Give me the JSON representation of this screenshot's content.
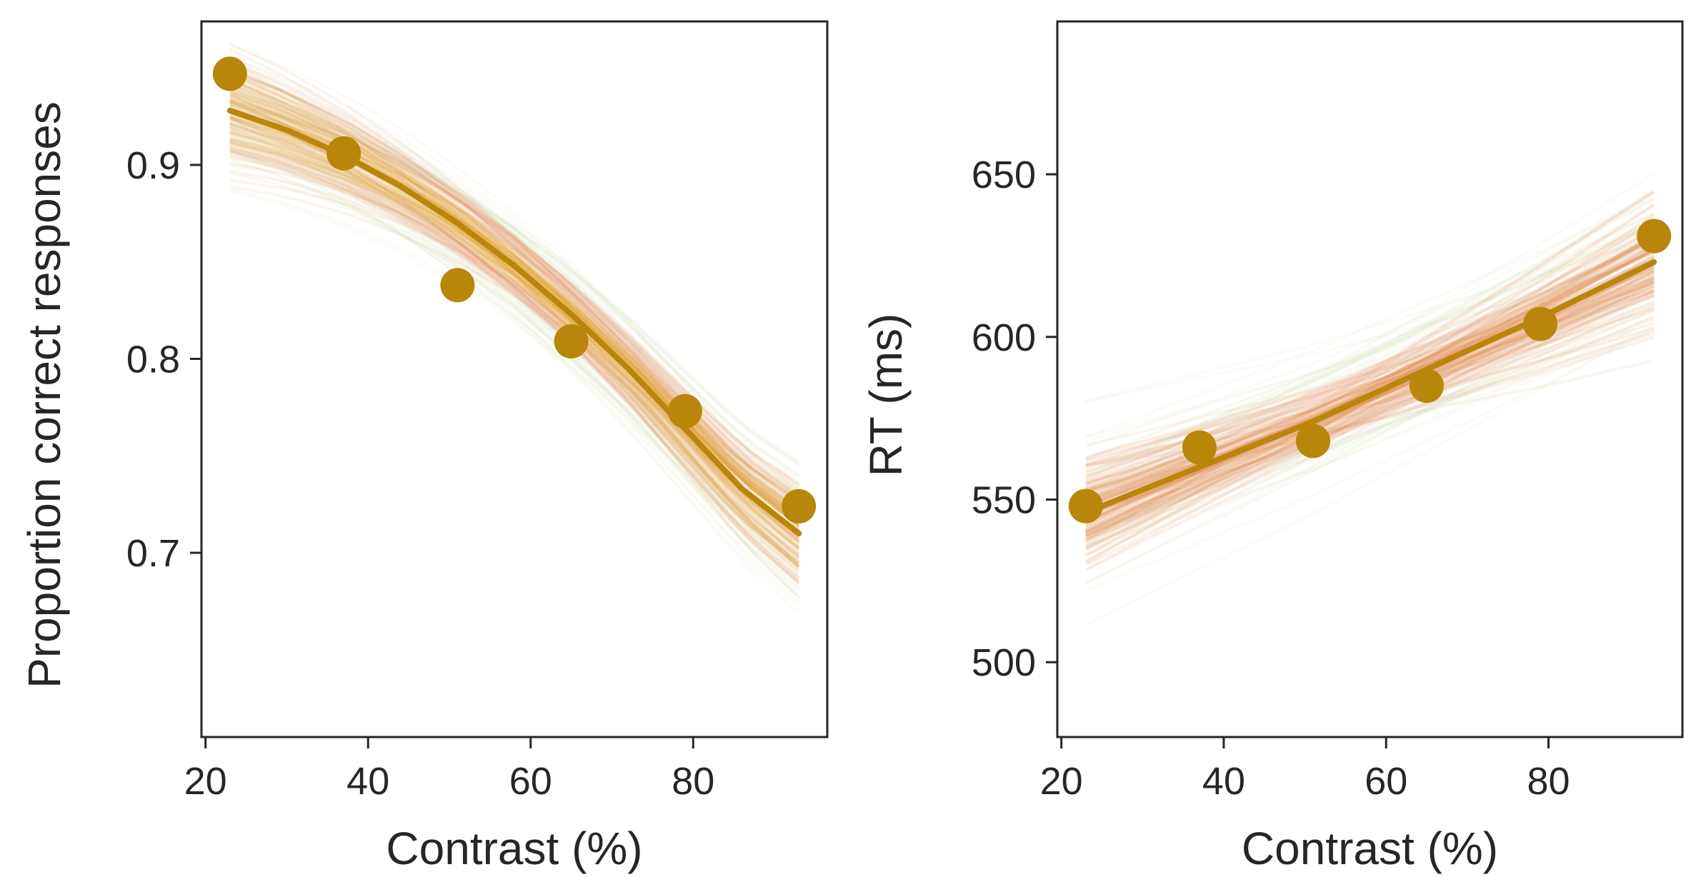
{
  "chart_data": [
    {
      "type": "line",
      "xlabel": "Contrast (%)",
      "ylabel": "Proportion correct responses",
      "xlim": [
        19.5,
        96.5
      ],
      "ylim": [
        0.605,
        0.974
      ],
      "xticks": [
        20,
        40,
        60,
        80
      ],
      "yticks": [
        0.7,
        0.8,
        0.9
      ],
      "ytick_labels": [
        "0.7",
        "0.8",
        "0.9"
      ],
      "grid": false,
      "series": [
        {
          "kind": "observed",
          "x": [
            23,
            37,
            51,
            65,
            79,
            93
          ],
          "y": [
            0.947,
            0.906,
            0.838,
            0.809,
            0.773,
            0.724
          ]
        },
        {
          "kind": "fit",
          "x": [
            23,
            30,
            37,
            44,
            51,
            58,
            65,
            72,
            79,
            86,
            93
          ],
          "y": [
            0.928,
            0.918,
            0.905,
            0.889,
            0.87,
            0.848,
            0.823,
            0.795,
            0.764,
            0.733,
            0.71
          ]
        }
      ],
      "band": {
        "lower_delta": 0.012,
        "upper_delta": 0.012
      },
      "colors": {
        "accent": "#b8860b",
        "band_inner": "#e0a030",
        "band_mid": "#e08a50",
        "band_outer": "#b8c07a"
      }
    },
    {
      "type": "line",
      "xlabel": "Contrast (%)",
      "ylabel": "RT (ms)",
      "xlim": [
        19.5,
        96.5
      ],
      "ylim": [
        477,
        697
      ],
      "xticks": [
        20,
        40,
        60,
        80
      ],
      "yticks": [
        500,
        550,
        600,
        650
      ],
      "ytick_labels": [
        "500",
        "550",
        "600",
        "650"
      ],
      "grid": false,
      "series": [
        {
          "kind": "observed",
          "x": [
            23,
            37,
            51,
            65,
            79,
            93
          ],
          "y": [
            548,
            566,
            568,
            585,
            604,
            631
          ]
        },
        {
          "kind": "fit",
          "x": [
            23,
            37,
            51,
            65,
            79,
            93
          ],
          "y": [
            546,
            560,
            574,
            590,
            606,
            623
          ]
        }
      ],
      "colors": {
        "accent": "#b8860b",
        "band_inner": "#e08a50",
        "band_outer": "#b8c07a"
      }
    }
  ]
}
